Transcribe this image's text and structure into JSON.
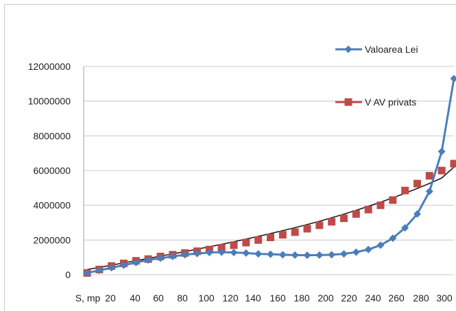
{
  "chart_data": {
    "type": "line",
    "title": "",
    "xlabel": "",
    "ylabel": "",
    "x_tick_labels": [
      "S, mp",
      "20",
      "40",
      "60",
      "80",
      "100",
      "120",
      "140",
      "160",
      "180",
      "200",
      "220",
      "240",
      "260",
      "280",
      "300"
    ],
    "y_tick_labels": [
      "0",
      "2000000",
      "4000000",
      "6000000",
      "8000000",
      "10000000",
      "12000000"
    ],
    "xlim": [
      10,
      310
    ],
    "ylim": [
      0,
      12000000
    ],
    "grid": "horizontal",
    "legend_position": "inside-right",
    "x": [
      10,
      20,
      30,
      40,
      50,
      60,
      70,
      80,
      90,
      100,
      110,
      120,
      130,
      140,
      150,
      160,
      170,
      180,
      190,
      200,
      210,
      220,
      230,
      240,
      250,
      260,
      270,
      280,
      290,
      300,
      310
    ],
    "series": [
      {
        "name": "Valoarea Lei",
        "color": "#4a7ebb",
        "marker": "diamond",
        "values": [
          100000,
          250000,
          400000,
          550000,
          700000,
          850000,
          950000,
          1050000,
          1150000,
          1220000,
          1280000,
          1300000,
          1280000,
          1250000,
          1200000,
          1180000,
          1150000,
          1130000,
          1120000,
          1130000,
          1150000,
          1200000,
          1300000,
          1450000,
          1700000,
          2100000,
          2700000,
          3500000,
          4800000,
          7100000,
          11300000
        ]
      },
      {
        "name": "V AV privats",
        "color": "#be4b48",
        "marker": "square",
        "values": [
          100000,
          300000,
          500000,
          650000,
          800000,
          900000,
          1050000,
          1150000,
          1250000,
          1350000,
          1450000,
          1550000,
          1700000,
          1850000,
          2000000,
          2150000,
          2300000,
          2450000,
          2650000,
          2850000,
          3050000,
          3250000,
          3500000,
          3750000,
          4000000,
          4300000,
          4850000,
          5250000,
          5700000,
          6000000,
          6400000
        ]
      }
    ],
    "trendline": {
      "color": "#1a1a1a",
      "values": [
        300000,
        420000,
        550000,
        680000,
        810000,
        940000,
        1070000,
        1200000,
        1330000,
        1470000,
        1610000,
        1750000,
        1900000,
        2050000,
        2210000,
        2370000,
        2540000,
        2710000,
        2890000,
        3080000,
        3280000,
        3490000,
        3710000,
        3940000,
        4180000,
        4430000,
        4690000,
        4970000,
        5260000,
        5570000,
        6200000
      ]
    }
  }
}
